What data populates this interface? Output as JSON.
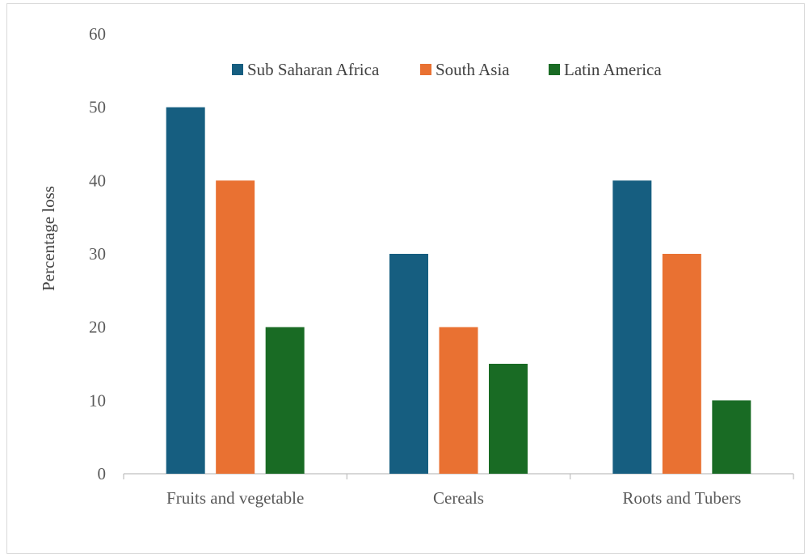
{
  "chart_data": {
    "type": "bar",
    "categories": [
      "Fruits and vegetable",
      "Cereals",
      "Roots and Tubers"
    ],
    "series": [
      {
        "name": "Sub Saharan Africa",
        "values": [
          50,
          30,
          40
        ],
        "color": "#165e80"
      },
      {
        "name": "South Asia",
        "values": [
          40,
          20,
          30
        ],
        "color": "#e97132"
      },
      {
        "name": "Latin America",
        "values": [
          20,
          15,
          10
        ],
        "color": "#196b24"
      }
    ],
    "title": "",
    "xlabel": "",
    "ylabel": "Percentage loss",
    "ylim": [
      0,
      60
    ],
    "yticks": [
      0,
      10,
      20,
      30,
      40,
      50,
      60
    ],
    "grid": false,
    "legend_position": "top"
  }
}
